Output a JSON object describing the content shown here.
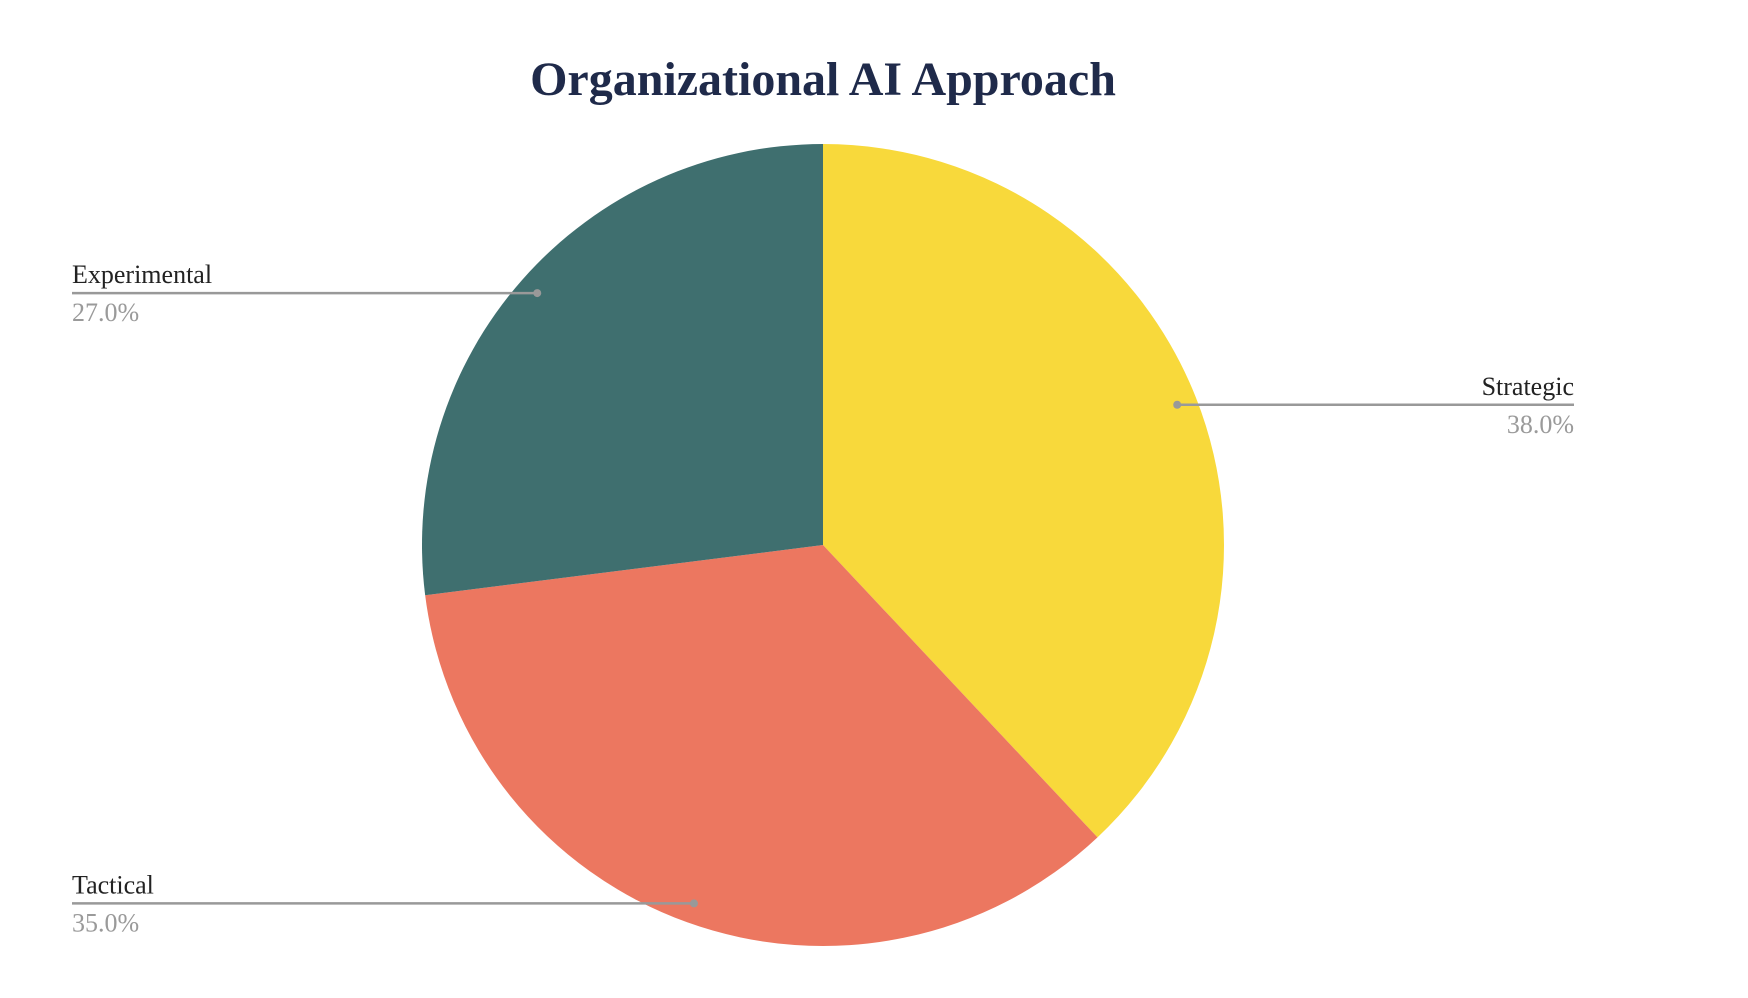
{
  "chart_data": {
    "type": "pie",
    "title": "Organizational AI Approach",
    "categories": [
      "Strategic",
      "Tactical",
      "Experimental"
    ],
    "values": [
      38,
      35,
      27
    ],
    "value_labels": [
      "38.0%",
      "35.0%",
      "27.0%"
    ],
    "colors": [
      "#f8d93b",
      "#ec7760",
      "#3f6f6f"
    ]
  }
}
